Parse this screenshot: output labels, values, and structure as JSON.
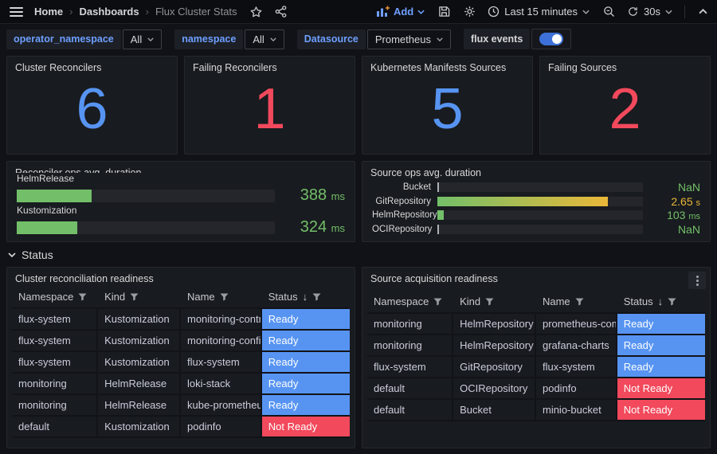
{
  "nav": {
    "breadcrumbs": [
      "Home",
      "Dashboards",
      "Flux Cluster Stats"
    ],
    "separator": "›",
    "add_label": "Add",
    "time_range": "Last 15 minutes",
    "refresh_interval": "30s"
  },
  "filters": {
    "variables": [
      {
        "label": "operator_namespace",
        "value": "All"
      },
      {
        "label": "namespace",
        "value": "All"
      },
      {
        "label": "Datasource",
        "value": "Prometheus"
      }
    ],
    "flux_events": {
      "label": "flux events",
      "enabled": true
    }
  },
  "stat_panels": [
    {
      "title": "Cluster Reconcilers",
      "value": "6",
      "color": "#5794F2"
    },
    {
      "title": "Failing Reconcilers",
      "value": "1",
      "color": "#F2495C"
    },
    {
      "title": "Kubernetes Manifests Sources",
      "value": "5",
      "color": "#5794F2"
    },
    {
      "title": "Failing Sources",
      "value": "2",
      "color": "#F2495C"
    }
  ],
  "gauge_panels": [
    {
      "title": "Reconciler ops avg. duration",
      "rows": [
        {
          "label": "HelmRelease",
          "value": "388",
          "unit": "ms",
          "value_color": "#73BF69",
          "fill": "#73BF69",
          "percent": 29
        },
        {
          "label": "Kustomization",
          "value": "324",
          "unit": "ms",
          "value_color": "#73BF69",
          "fill": "#73BF69",
          "percent": 23.5
        }
      ]
    },
    {
      "title": "Source ops avg. duration",
      "rows": [
        {
          "label": "Bucket",
          "value": "NaN",
          "unit": "",
          "value_color": "#73BF69",
          "fill": "#aeb1b7",
          "percent": 0.7
        },
        {
          "label": "GitRepository",
          "value": "2.65",
          "unit": "s",
          "value_color": "#EAB839",
          "fill": "linear-gradient(90deg,#73BF69,#EAB839)",
          "percent": 83
        },
        {
          "label": "HelmRepository",
          "value": "103",
          "unit": "ms",
          "value_color": "#73BF69",
          "fill": "#73BF69",
          "percent": 3
        },
        {
          "label": "OCIRepository",
          "value": "NaN",
          "unit": "",
          "value_color": "#73BF69",
          "fill": "#aeb1b7",
          "percent": 0.7
        }
      ]
    }
  ],
  "status_section": {
    "label": "Status"
  },
  "table_sort_glyph": "↓",
  "tables": [
    {
      "title": "Cluster reconciliation readiness",
      "headers": [
        "Namespace",
        "Kind",
        "Name",
        "Status"
      ],
      "rows": [
        {
          "namespace": "flux-system",
          "kind": "Kustomization",
          "name": "monitoring-contr...",
          "status": "Ready",
          "status_kind": "ready"
        },
        {
          "namespace": "flux-system",
          "kind": "Kustomization",
          "name": "monitoring-configs",
          "status": "Ready",
          "status_kind": "ready"
        },
        {
          "namespace": "flux-system",
          "kind": "Kustomization",
          "name": "flux-system",
          "status": "Ready",
          "status_kind": "ready"
        },
        {
          "namespace": "monitoring",
          "kind": "HelmRelease",
          "name": "loki-stack",
          "status": "Ready",
          "status_kind": "ready"
        },
        {
          "namespace": "monitoring",
          "kind": "HelmRelease",
          "name": "kube-prometheu...",
          "status": "Ready",
          "status_kind": "ready"
        },
        {
          "namespace": "default",
          "kind": "Kustomization",
          "name": "podinfo",
          "status": "Not Ready",
          "status_kind": "not-ready"
        }
      ]
    },
    {
      "title": "Source acquisition readiness",
      "headers": [
        "Namespace",
        "Kind",
        "Name",
        "Status"
      ],
      "rows": [
        {
          "namespace": "monitoring",
          "kind": "HelmRepository",
          "name": "prometheus-com...",
          "status": "Ready",
          "status_kind": "ready"
        },
        {
          "namespace": "monitoring",
          "kind": "HelmRepository",
          "name": "grafana-charts",
          "status": "Ready",
          "status_kind": "ready"
        },
        {
          "namespace": "flux-system",
          "kind": "GitRepository",
          "name": "flux-system",
          "status": "Ready",
          "status_kind": "ready"
        },
        {
          "namespace": "default",
          "kind": "OCIRepository",
          "name": "podinfo",
          "status": "Not Ready",
          "status_kind": "not-ready"
        },
        {
          "namespace": "default",
          "kind": "Bucket",
          "name": "minio-bucket",
          "status": "Not Ready",
          "status_kind": "not-ready"
        }
      ]
    }
  ],
  "colors": {
    "ready_bg": "#5794F2",
    "not_ready_bg": "#F2495C",
    "value_green": "#73BF69",
    "value_yellow": "#EAB839",
    "link_blue": "#6E9FFF"
  }
}
